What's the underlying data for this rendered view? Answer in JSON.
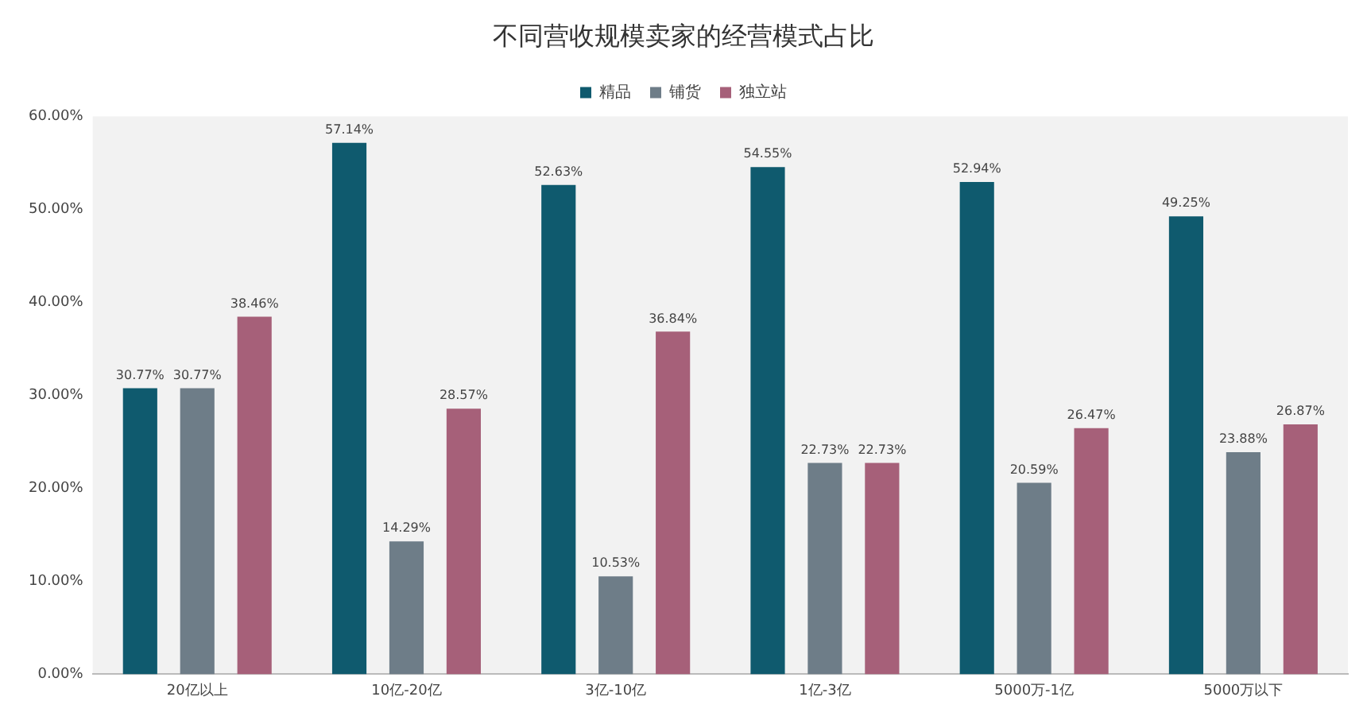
{
  "chart_data": {
    "type": "bar",
    "title": "不同营收规模卖家的经营模式占比",
    "categories": [
      "20亿以上",
      "10亿-20亿",
      "3亿-10亿",
      "1亿-3亿",
      "5000万-1亿",
      "5000万以下"
    ],
    "series": [
      {
        "name": "精品",
        "color": "#0f5a6e",
        "values": [
          30.77,
          57.14,
          52.63,
          54.55,
          52.94,
          49.25
        ],
        "value_labels": [
          "30.77%",
          "57.14%",
          "52.63%",
          "54.55%",
          "52.94%",
          "49.25%"
        ]
      },
      {
        "name": "铺货",
        "color": "#6e7d88",
        "values": [
          30.77,
          14.29,
          10.53,
          22.73,
          20.59,
          23.88
        ],
        "value_labels": [
          "30.77%",
          "14.29%",
          "10.53%",
          "22.73%",
          "20.59%",
          "23.88%"
        ]
      },
      {
        "name": "独立站",
        "color": "#a66079",
        "values": [
          38.46,
          28.57,
          36.84,
          22.73,
          26.47,
          26.87
        ],
        "value_labels": [
          "38.46%",
          "28.57%",
          "36.84%",
          "22.73%",
          "26.47%",
          "26.87%"
        ]
      }
    ],
    "ylim": [
      0,
      60
    ],
    "yticks": [
      {
        "value": 0,
        "label": "0.00%"
      },
      {
        "value": 10,
        "label": "10.00%"
      },
      {
        "value": 20,
        "label": "20.00%"
      },
      {
        "value": 30,
        "label": "30.00%"
      },
      {
        "value": 40,
        "label": "40.00%"
      },
      {
        "value": 50,
        "label": "50.00%"
      },
      {
        "value": 60,
        "label": "60.00%"
      }
    ],
    "grid": false,
    "legend": "top"
  }
}
